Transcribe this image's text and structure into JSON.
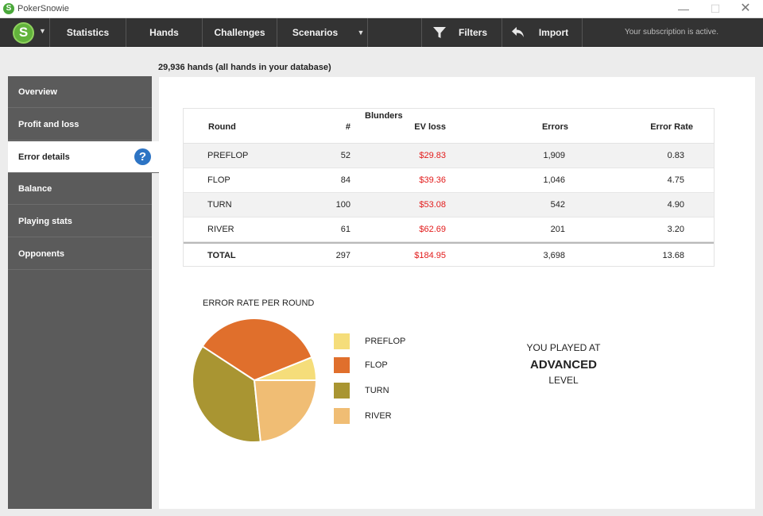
{
  "window": {
    "title": "PokerSnowie",
    "logo_letter": "S"
  },
  "toolbar": {
    "items": [
      "Statistics",
      "Hands",
      "Challenges",
      "Scenarios"
    ],
    "filters_label": "Filters",
    "import_label": "Import",
    "subscription": "Your subscription is active."
  },
  "hands_header": "29,936 hands (all hands in your database)",
  "sidebar": {
    "items": [
      "Overview",
      "Profit and loss",
      "Error details",
      "Balance",
      "Playing stats",
      "Opponents"
    ],
    "active": "Error details",
    "help_glyph": "?"
  },
  "table": {
    "group_header": "Blunders",
    "columns": [
      "Round",
      "#",
      "EV loss",
      "Errors",
      "Error Rate"
    ],
    "rows": [
      {
        "round": "PREFLOP",
        "num": "52",
        "ev": "$29.83",
        "errors": "1,909",
        "rate": "0.83"
      },
      {
        "round": "FLOP",
        "num": "84",
        "ev": "$39.36",
        "errors": "1,046",
        "rate": "4.75"
      },
      {
        "round": "TURN",
        "num": "100",
        "ev": "$53.08",
        "errors": "542",
        "rate": "4.90"
      },
      {
        "round": "RIVER",
        "num": "61",
        "ev": "$62.69",
        "errors": "201",
        "rate": "3.20"
      }
    ],
    "total": {
      "round": "TOTAL",
      "num": "297",
      "ev": "$184.95",
      "errors": "3,698",
      "rate": "13.68"
    }
  },
  "chart_data": {
    "type": "pie",
    "title": "ERROR RATE PER ROUND",
    "categories": [
      "PREFLOP",
      "FLOP",
      "TURN",
      "RIVER"
    ],
    "values": [
      0.83,
      4.75,
      4.9,
      3.2
    ],
    "colors": [
      "#f5dd7a",
      "#e06f2c",
      "#a99532",
      "#f0bd74"
    ],
    "legend": "right"
  },
  "level": {
    "line1": "YOU PLAYED AT",
    "line2": "ADVANCED",
    "line3": "LEVEL"
  },
  "colors": {
    "accent_green": "#62b33c",
    "toolbar_bg": "#333333",
    "ev_loss_red": "#e21b1b",
    "help_blue": "#2d74c4"
  }
}
